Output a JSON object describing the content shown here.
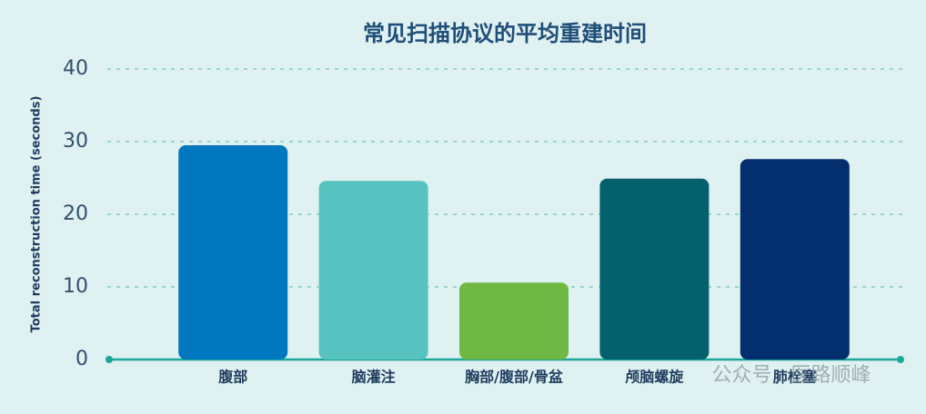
{
  "chart_data": {
    "type": "bar",
    "title": "常见扫描协议的平均重建时间",
    "y_label": "Total reconstruction time (seconds)",
    "categories": [
      "腹部",
      "脑灌注",
      "胸部/腹部/骨盆",
      "颅脑螺旋",
      "肺栓塞"
    ],
    "values": [
      29.5,
      24.6,
      10.6,
      24.9,
      27.6
    ],
    "colors": [
      "#0077be",
      "#57c3c0",
      "#70b844",
      "#05606e",
      "#032f6f"
    ],
    "ylim": [
      0,
      40
    ],
    "yticks": [
      0,
      10,
      20,
      30,
      40
    ],
    "grid": true,
    "watermark": "公众号 · 医路顺峰"
  }
}
